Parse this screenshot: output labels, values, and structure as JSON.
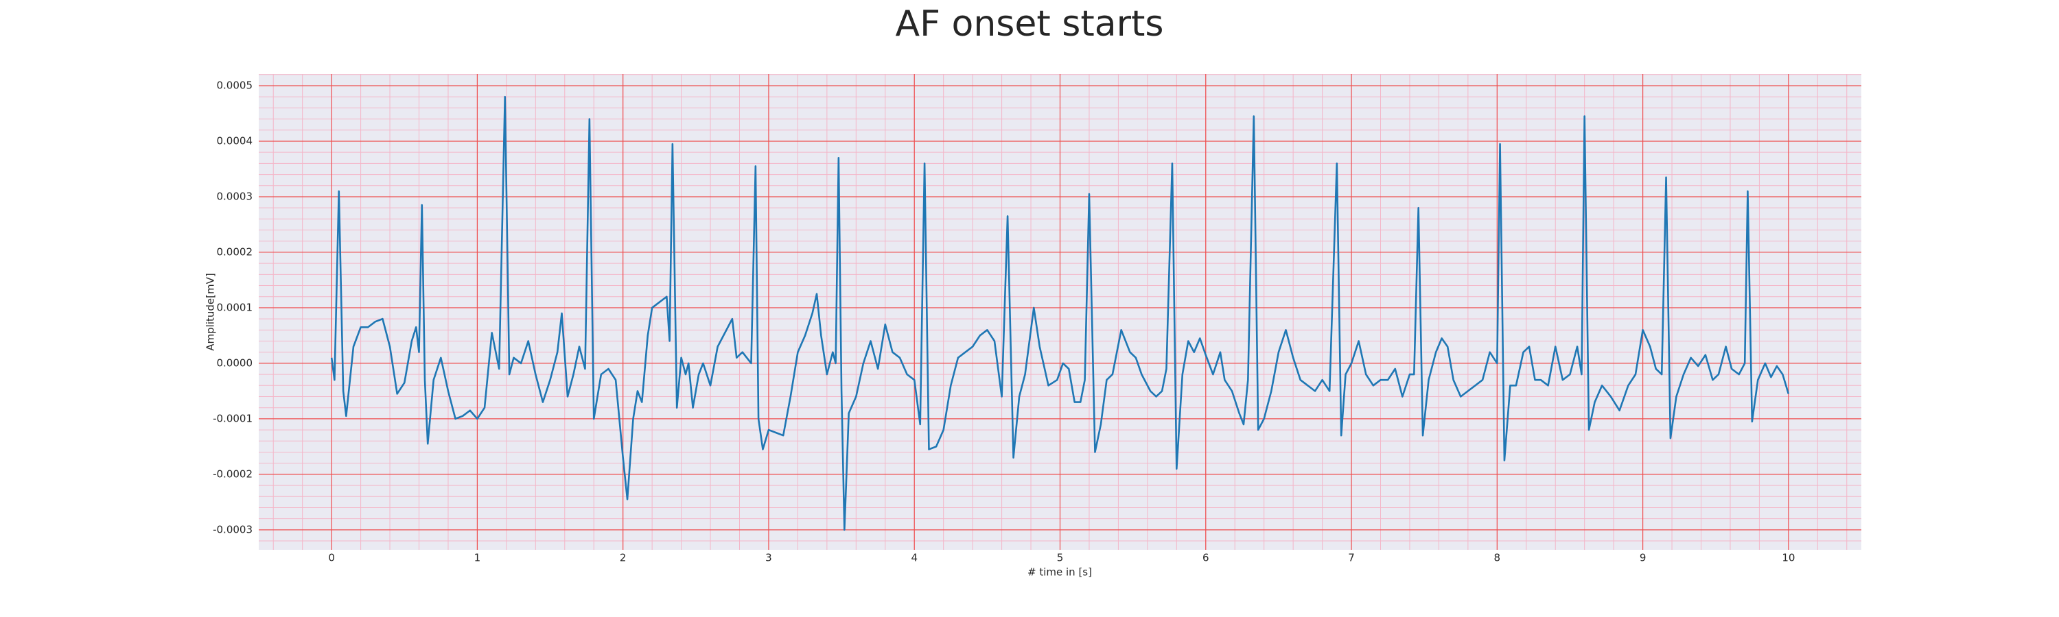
{
  "chart_data": {
    "type": "line",
    "title": "AF onset starts",
    "xlabel": "# time in [s]",
    "ylabel": "Amplitude[mV]",
    "color": "#1f77b4",
    "grid": true,
    "minor_grid": true,
    "xlim": [
      -0.5,
      10.5
    ],
    "ylim": [
      -0.000336,
      0.000521
    ],
    "xticks": [
      0,
      1,
      2,
      3,
      4,
      5,
      6,
      7,
      8,
      9,
      10
    ],
    "yticks": [
      -0.0003,
      -0.0002,
      -0.0001,
      {
        "value": 0,
        "label": "0.0000"
      },
      0.0001,
      0.0002,
      0.0003,
      0.0004,
      0.0005
    ],
    "x": [
      0.0,
      0.02,
      0.05,
      0.08,
      0.1,
      0.15,
      0.2,
      0.25,
      0.3,
      0.35,
      0.4,
      0.45,
      0.5,
      0.55,
      0.58,
      0.6,
      0.62,
      0.64,
      0.66,
      0.7,
      0.75,
      0.8,
      0.85,
      0.9,
      0.95,
      1.0,
      1.05,
      1.1,
      1.15,
      1.19,
      1.22,
      1.25,
      1.3,
      1.35,
      1.4,
      1.45,
      1.5,
      1.55,
      1.58,
      1.62,
      1.66,
      1.7,
      1.74,
      1.77,
      1.8,
      1.85,
      1.9,
      1.95,
      2.0,
      2.03,
      2.07,
      2.1,
      2.13,
      2.17,
      2.2,
      2.25,
      2.3,
      2.32,
      2.34,
      2.37,
      2.4,
      2.43,
      2.45,
      2.48,
      2.52,
      2.55,
      2.6,
      2.65,
      2.7,
      2.75,
      2.78,
      2.82,
      2.88,
      2.91,
      2.93,
      2.96,
      3.0,
      3.05,
      3.1,
      3.15,
      3.2,
      3.25,
      3.3,
      3.33,
      3.36,
      3.4,
      3.44,
      3.46,
      3.48,
      3.5,
      3.52,
      3.55,
      3.6,
      3.65,
      3.7,
      3.75,
      3.8,
      3.85,
      3.9,
      3.95,
      4.0,
      4.04,
      4.07,
      4.1,
      4.15,
      4.2,
      4.25,
      4.3,
      4.35,
      4.4,
      4.45,
      4.5,
      4.55,
      4.6,
      4.64,
      4.68,
      4.72,
      4.76,
      4.82,
      4.86,
      4.92,
      4.98,
      5.02,
      5.06,
      5.1,
      5.14,
      5.17,
      5.2,
      5.24,
      5.28,
      5.32,
      5.36,
      5.42,
      5.48,
      5.52,
      5.56,
      5.62,
      5.66,
      5.7,
      5.73,
      5.77,
      5.8,
      5.84,
      5.88,
      5.92,
      5.96,
      6.0,
      6.05,
      6.1,
      6.13,
      6.18,
      6.23,
      6.26,
      6.29,
      6.33,
      6.36,
      6.4,
      6.45,
      6.5,
      6.55,
      6.6,
      6.65,
      6.7,
      6.75,
      6.8,
      6.85,
      6.9,
      6.93,
      6.96,
      7.0,
      7.05,
      7.1,
      7.15,
      7.2,
      7.25,
      7.3,
      7.35,
      7.4,
      7.43,
      7.46,
      7.49,
      7.53,
      7.58,
      7.62,
      7.66,
      7.7,
      7.75,
      7.8,
      7.85,
      7.9,
      7.95,
      8.0,
      8.02,
      8.05,
      8.09,
      8.13,
      8.18,
      8.22,
      8.26,
      8.3,
      8.35,
      8.4,
      8.45,
      8.5,
      8.55,
      8.58,
      8.6,
      8.63,
      8.67,
      8.72,
      8.78,
      8.84,
      8.9,
      8.95,
      9.0,
      9.05,
      9.09,
      9.13,
      9.16,
      9.19,
      9.23,
      9.28,
      9.33,
      9.38,
      9.43,
      9.48,
      9.52,
      9.57,
      9.61,
      9.66,
      9.7,
      9.72,
      9.75,
      9.79,
      9.84,
      9.88,
      9.92,
      9.96,
      10.0
    ],
    "values": [
      1e-05,
      -3e-05,
      0.00031,
      -5e-05,
      -9.5e-05,
      3e-05,
      6.5e-05,
      6.5e-05,
      7.5e-05,
      8e-05,
      3e-05,
      -5.5e-05,
      -3.5e-05,
      4e-05,
      6.5e-05,
      2e-05,
      0.000285,
      -3e-05,
      -0.000145,
      -3e-05,
      1e-05,
      -5e-05,
      -0.0001,
      -9.5e-05,
      -8.5e-05,
      -0.0001,
      -8e-05,
      5.5e-05,
      -1e-05,
      0.00048,
      -2e-05,
      1e-05,
      0.0,
      4e-05,
      -2e-05,
      -7e-05,
      -3e-05,
      2e-05,
      9e-05,
      -6e-05,
      -2e-05,
      3e-05,
      -1e-05,
      0.00044,
      -0.0001,
      -2e-05,
      -1e-05,
      -3e-05,
      -0.00017,
      -0.000245,
      -0.0001,
      -5e-05,
      -7e-05,
      5e-05,
      0.0001,
      0.00011,
      0.00012,
      4e-05,
      0.000395,
      -8e-05,
      1e-05,
      -2e-05,
      0.0,
      -8e-05,
      -2e-05,
      0.0,
      -4e-05,
      3e-05,
      5.5e-05,
      8e-05,
      1e-05,
      2e-05,
      0.0,
      0.000355,
      -0.0001,
      -0.000155,
      -0.00012,
      -0.000125,
      -0.00013,
      -6e-05,
      2e-05,
      5e-05,
      9e-05,
      0.000125,
      5e-05,
      -2e-05,
      2e-05,
      0.0,
      0.00037,
      -5e-05,
      -0.0003,
      -9e-05,
      -6e-05,
      0.0,
      4e-05,
      -1e-05,
      7e-05,
      2e-05,
      1e-05,
      -2e-05,
      -3e-05,
      -0.00011,
      0.00036,
      -0.000155,
      -0.00015,
      -0.00012,
      -4e-05,
      1e-05,
      2e-05,
      3e-05,
      5e-05,
      6e-05,
      4e-05,
      -6e-05,
      0.000265,
      -0.00017,
      -6e-05,
      -2e-05,
      0.0001,
      3e-05,
      -4e-05,
      -3e-05,
      0.0,
      -1e-05,
      -7e-05,
      -7e-05,
      -3e-05,
      0.000305,
      -0.00016,
      -0.00011,
      -3e-05,
      -2e-05,
      6e-05,
      2e-05,
      1e-05,
      -2e-05,
      -5e-05,
      -6e-05,
      -5e-05,
      -1e-05,
      0.00036,
      -0.00019,
      -2e-05,
      4e-05,
      2e-05,
      4.5e-05,
      1.5e-05,
      -2e-05,
      2e-05,
      -3e-05,
      -5e-05,
      -9e-05,
      -0.00011,
      -3e-05,
      0.000445,
      -0.00012,
      -0.0001,
      -5e-05,
      2e-05,
      6e-05,
      1e-05,
      -3e-05,
      -4e-05,
      -5e-05,
      -3e-05,
      -5e-05,
      0.00036,
      -0.00013,
      -2e-05,
      0.0,
      4e-05,
      -2e-05,
      -4e-05,
      -3e-05,
      -3e-05,
      -1e-05,
      -6e-05,
      -2e-05,
      -2e-05,
      0.00028,
      -0.00013,
      -3e-05,
      2e-05,
      4.5e-05,
      3e-05,
      -3e-05,
      -6e-05,
      -5e-05,
      -4e-05,
      -3e-05,
      2e-05,
      0.0,
      0.000395,
      -0.000175,
      -4e-05,
      -4e-05,
      2e-05,
      3e-05,
      -3e-05,
      -3e-05,
      -4e-05,
      3e-05,
      -3e-05,
      -2e-05,
      3e-05,
      -2e-05,
      0.000445,
      -0.00012,
      -7e-05,
      -4e-05,
      -6e-05,
      -8.5e-05,
      -4e-05,
      -2e-05,
      6e-05,
      3e-05,
      -1e-05,
      -2e-05,
      0.000335,
      -0.000135,
      -6e-05,
      -2e-05,
      1e-05,
      -5e-06,
      1.5e-05,
      -3e-05,
      -2e-05,
      3e-05,
      -1e-05,
      -2e-05,
      0.0,
      0.00031,
      -0.000105,
      -3e-05,
      0.0,
      -2.5e-05,
      -5e-06,
      -2e-05,
      -5.5e-05
    ]
  }
}
